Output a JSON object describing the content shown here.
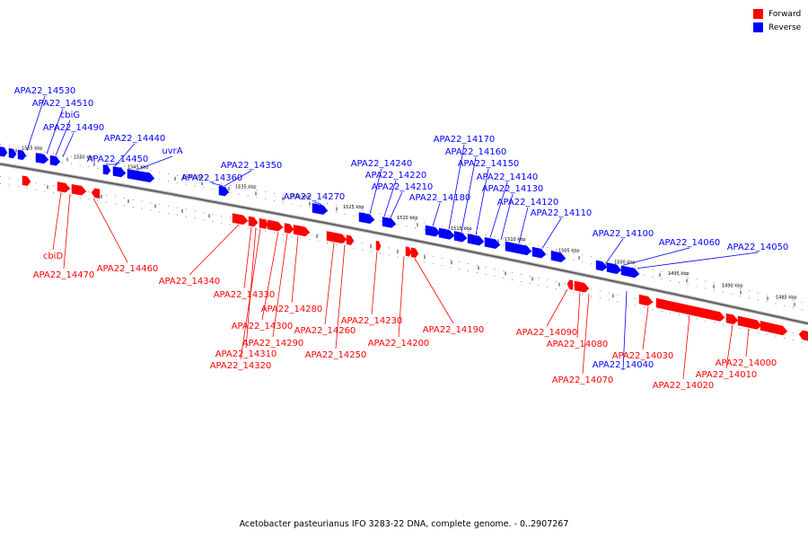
{
  "legend": {
    "forward_label": "Forward",
    "reverse_label": "Reverse",
    "forward_color": "#ff0000",
    "reverse_color": "#0000ff"
  },
  "caption": "Acetobacter pasteurianus IFO 3283-22 DNA, complete genome. - 0..2907267",
  "ticks": [
    "1555 kbp",
    "1550 kbp",
    "1545 kbp",
    "1540 kbp",
    "1535 kbp",
    "1530 kbp",
    "1525 kbp",
    "1520 kbp",
    "1515 kbp",
    "1510 kbp",
    "1505 kbp",
    "1500 kbp",
    "1495 kbp",
    "1490 kbp",
    "1485 kbp"
  ],
  "reverse_genes": [
    "APA22_14530",
    "APA22_14510",
    "cbiG",
    "APA22_14490",
    "APA22_14440",
    "APA22_14450",
    "uvrA",
    "APA22_14360",
    "APA22_14350",
    "APA22_14270",
    "APA22_14240",
    "APA22_14220",
    "APA22_14210",
    "APA22_14180",
    "APA22_14170",
    "APA22_14160",
    "APA22_14150",
    "APA22_14140",
    "APA22_14130",
    "APA22_14120",
    "APA22_14110",
    "APA22_14100",
    "APA22_14060",
    "APA22_14050",
    "APA22_14040"
  ],
  "forward_genes": [
    "cbiD",
    "APA22_14470",
    "APA22_14460",
    "APA22_14340",
    "APA22_14330",
    "APA22_14280",
    "APA22_14300",
    "APA22_14290",
    "APA22_14310",
    "APA22_14320",
    "APA22_14260",
    "APA22_14250",
    "APA22_14230",
    "APA22_14200",
    "APA22_14190",
    "APA22_14090",
    "APA22_14080",
    "APA22_14070",
    "APA22_14030",
    "APA22_14020",
    "APA22_14010",
    "APA22_14000"
  ]
}
